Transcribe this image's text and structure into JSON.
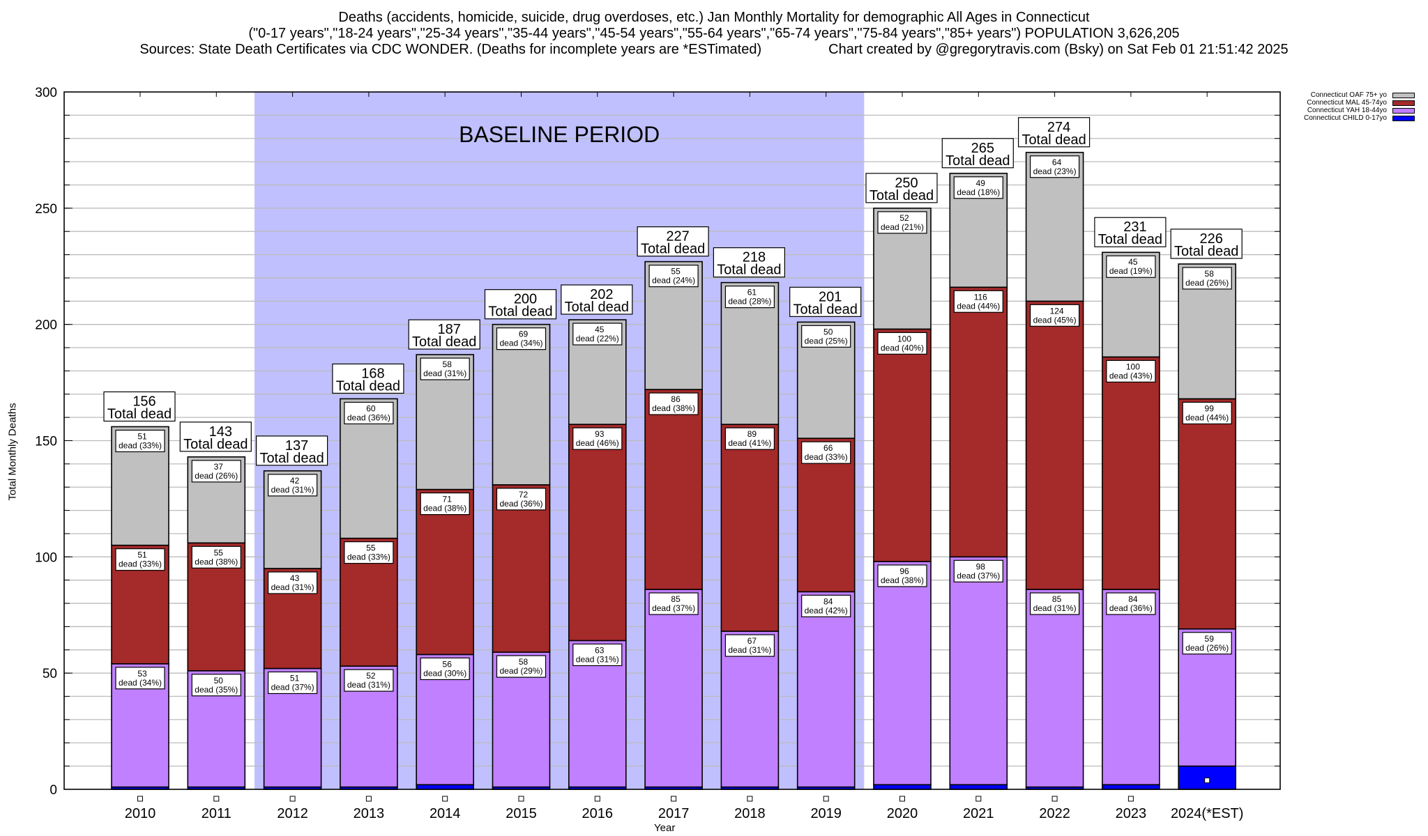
{
  "chart_data": {
    "type": "bar",
    "stacked": true,
    "title": "Deaths (accidents, homicide, suicide, drug overdoses, etc.) Jan Monthly Mortality for demographic All Ages in Connecticut",
    "subtitle": "(\"0-17 years\",\"18-24 years\",\"25-34 years\",\"35-44 years\",\"45-54 years\",\"55-64 years\",\"65-74 years\",\"75-84 years\",\"85+ years\") POPULATION 3,626,205",
    "source": "Sources: State Death Certificates via CDC WONDER. (Deaths for incomplete years are *ESTimated)",
    "credit": "Chart created by @gregorytravis.com (Bsky) on Sat Feb 01 21:51:42 2025",
    "xlabel": "Year",
    "ylabel": "Total Monthly Deaths",
    "ylim": [
      0,
      300
    ],
    "yticks": [
      0,
      50,
      100,
      150,
      200,
      250,
      300
    ],
    "grid": true,
    "grid_step": 10,
    "legend_position": "top-right",
    "categories": [
      "2010",
      "2011",
      "2012",
      "2013",
      "2014",
      "2015",
      "2016",
      "2017",
      "2018",
      "2019",
      "2020",
      "2021",
      "2022",
      "2023",
      "2024(*EST)"
    ],
    "annotation": {
      "text": "BASELINE PERIOD",
      "shaded_range": [
        "2012",
        "2019"
      ],
      "color": "#c0c0ff"
    },
    "total_label_suffix": "Total dead",
    "segment_label_word": "dead",
    "totals": [
      156,
      143,
      137,
      168,
      187,
      200,
      202,
      227,
      218,
      201,
      250,
      265,
      274,
      231,
      226
    ],
    "series": [
      {
        "name": "Connecticut CHILD 0-17yo",
        "color": "#0000ff",
        "values": [
          1,
          1,
          1,
          1,
          2,
          1,
          1,
          1,
          1,
          1,
          2,
          2,
          1,
          2,
          10
        ],
        "pct": null
      },
      {
        "name": "Connecticut YAH 18-44yo",
        "color": "#c080ff",
        "values": [
          53,
          50,
          51,
          52,
          56,
          58,
          63,
          85,
          67,
          84,
          96,
          98,
          85,
          84,
          59
        ],
        "pct": [
          34,
          35,
          37,
          31,
          30,
          29,
          31,
          37,
          31,
          42,
          38,
          37,
          31,
          36,
          26
        ]
      },
      {
        "name": "Connecticut MAL 45-74yo",
        "color": "#a52a2a",
        "values": [
          51,
          55,
          43,
          55,
          71,
          72,
          93,
          86,
          89,
          66,
          100,
          116,
          124,
          100,
          99
        ],
        "pct": [
          33,
          38,
          31,
          33,
          38,
          36,
          46,
          38,
          41,
          33,
          40,
          44,
          45,
          43,
          44
        ]
      },
      {
        "name": "Connecticut OAF 75+ yo",
        "color": "#c0c0c0",
        "values": [
          51,
          37,
          42,
          60,
          58,
          69,
          45,
          55,
          61,
          50,
          52,
          49,
          64,
          45,
          58
        ],
        "pct": [
          33,
          26,
          31,
          36,
          31,
          34,
          22,
          24,
          28,
          25,
          21,
          18,
          23,
          19,
          26
        ]
      }
    ]
  }
}
